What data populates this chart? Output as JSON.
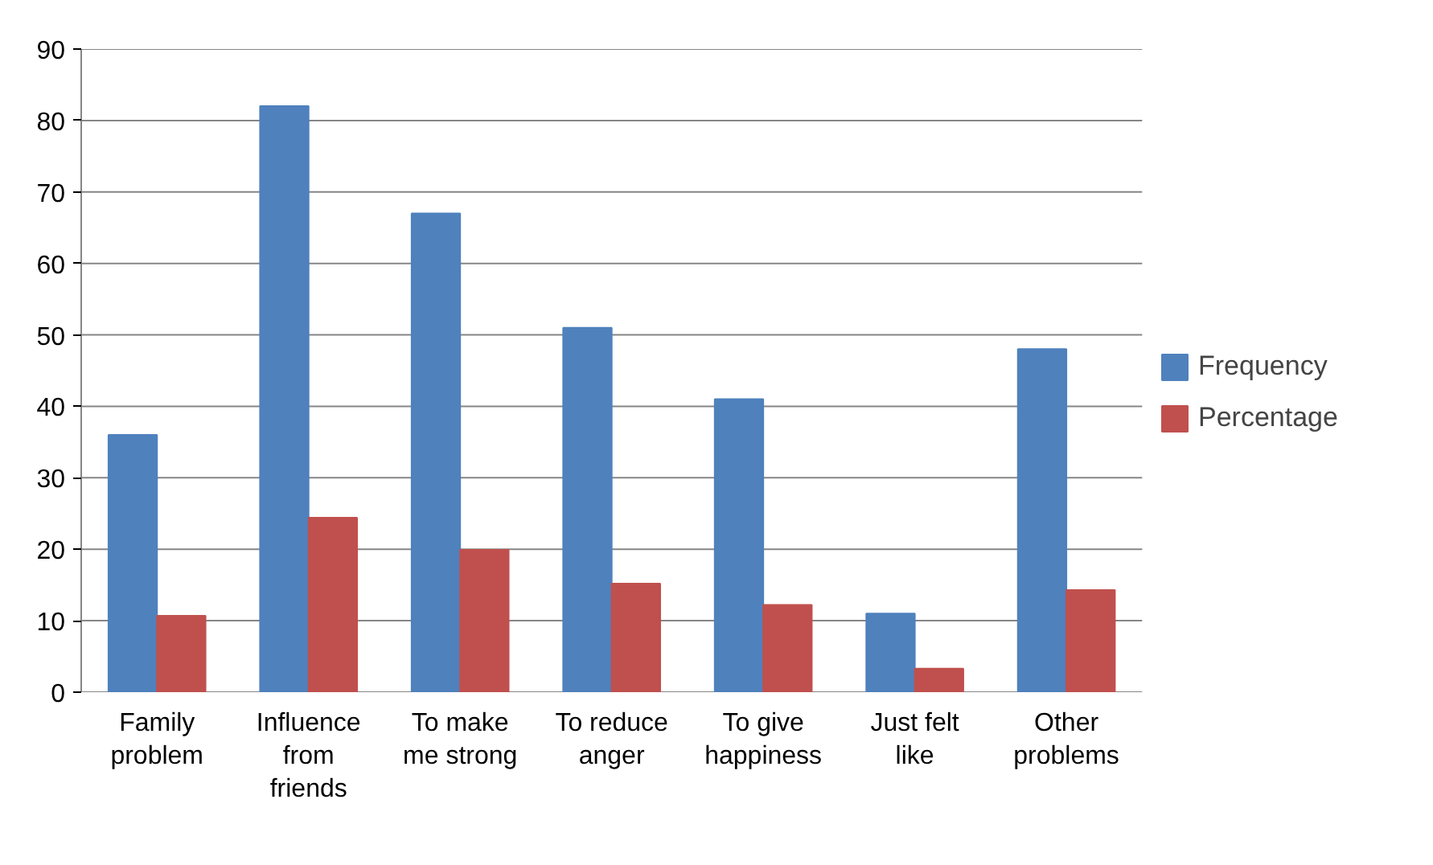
{
  "chart_data": {
    "type": "bar",
    "categories": [
      "Family problem",
      "Influence from friends",
      "To make me strong",
      "To reduce anger",
      "To give happiness",
      "Just felt like",
      "Other problems"
    ],
    "series": [
      {
        "name": "Frequency",
        "color": "#4f81bd",
        "values": [
          36,
          82,
          67,
          51,
          41,
          11,
          48
        ]
      },
      {
        "name": "Percentage",
        "color": "#c0504d",
        "values": [
          10.7,
          24.4,
          19.9,
          15.2,
          12.2,
          3.3,
          14.3
        ]
      }
    ],
    "ylim": [
      0,
      90
    ],
    "yticks": [
      0,
      10,
      20,
      30,
      40,
      50,
      60,
      70,
      80,
      90
    ],
    "grid": "y",
    "legend": "right"
  }
}
